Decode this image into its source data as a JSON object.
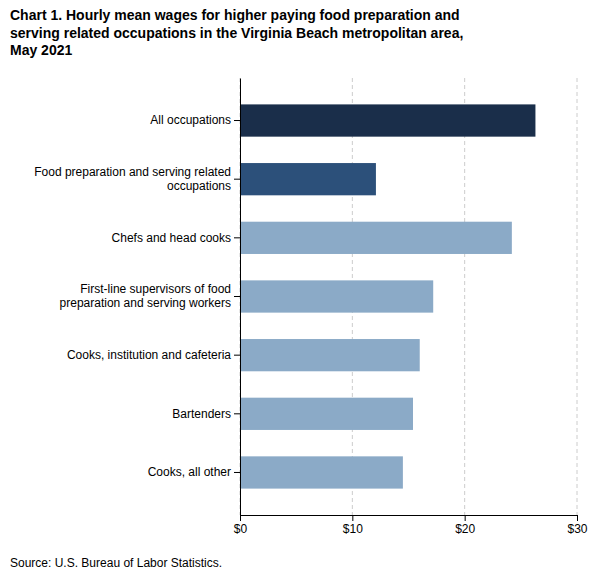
{
  "chart_data": {
    "type": "bar",
    "orientation": "horizontal",
    "title": "Chart 1. Hourly mean wages for higher paying food preparation and\nserving related occupations in the Virginia Beach metropolitan area,\nMay 2021",
    "categories": [
      "Cooks, all other",
      "Bartenders",
      "Cooks, institution and cafeteria",
      "First-line supervisors of food\npreparation and serving workers",
      "Chefs and head cooks",
      "Food preparation and serving related\noccupations",
      "All occupations"
    ],
    "values": [
      14.5,
      15.4,
      16.0,
      17.2,
      24.2,
      12.1,
      26.3
    ],
    "colors": [
      "#8BAAC7",
      "#8BAAC7",
      "#8BAAC7",
      "#8BAAC7",
      "#8BAAC7",
      "#2C507A",
      "#1A2E4A"
    ],
    "xlim": [
      0,
      30
    ],
    "xticks": [
      {
        "value": 0,
        "label": "$0"
      },
      {
        "value": 10,
        "label": "$10"
      },
      {
        "value": 20,
        "label": "$20"
      },
      {
        "value": 30,
        "label": "$30"
      }
    ],
    "grid": true,
    "annotations": [
      "Source: U.S. Bureau of Labor Statistics."
    ]
  }
}
